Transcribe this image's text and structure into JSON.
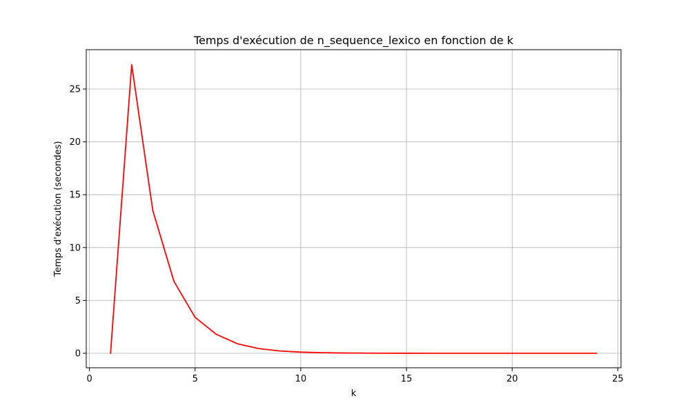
{
  "chart_data": {
    "type": "line",
    "title": "Temps d'exécution de n_sequence_lexico en fonction de k",
    "xlabel": "k",
    "ylabel": "Temps d'exécution (secondes)",
    "xlim": [
      -0.15,
      25.15
    ],
    "ylim": [
      -1.37,
      28.72
    ],
    "xticks": [
      0,
      5,
      10,
      15,
      20,
      25
    ],
    "yticks": [
      0,
      5,
      10,
      15,
      20,
      25
    ],
    "grid": true,
    "series": [
      {
        "color": "#ff0000",
        "x": [
          1,
          2,
          3,
          4,
          5,
          6,
          7,
          8,
          9,
          10,
          11,
          12,
          13,
          14,
          15,
          16,
          17,
          18,
          19,
          20,
          21,
          22,
          23,
          24
        ],
        "y": [
          0,
          27.3,
          13.5,
          6.8,
          3.4,
          1.8,
          0.9,
          0.45,
          0.22,
          0.11,
          0.06,
          0.03,
          0.015,
          0.008,
          0.004,
          0.002,
          0.001,
          0.001,
          0,
          0,
          0,
          0,
          0,
          0
        ]
      }
    ]
  }
}
